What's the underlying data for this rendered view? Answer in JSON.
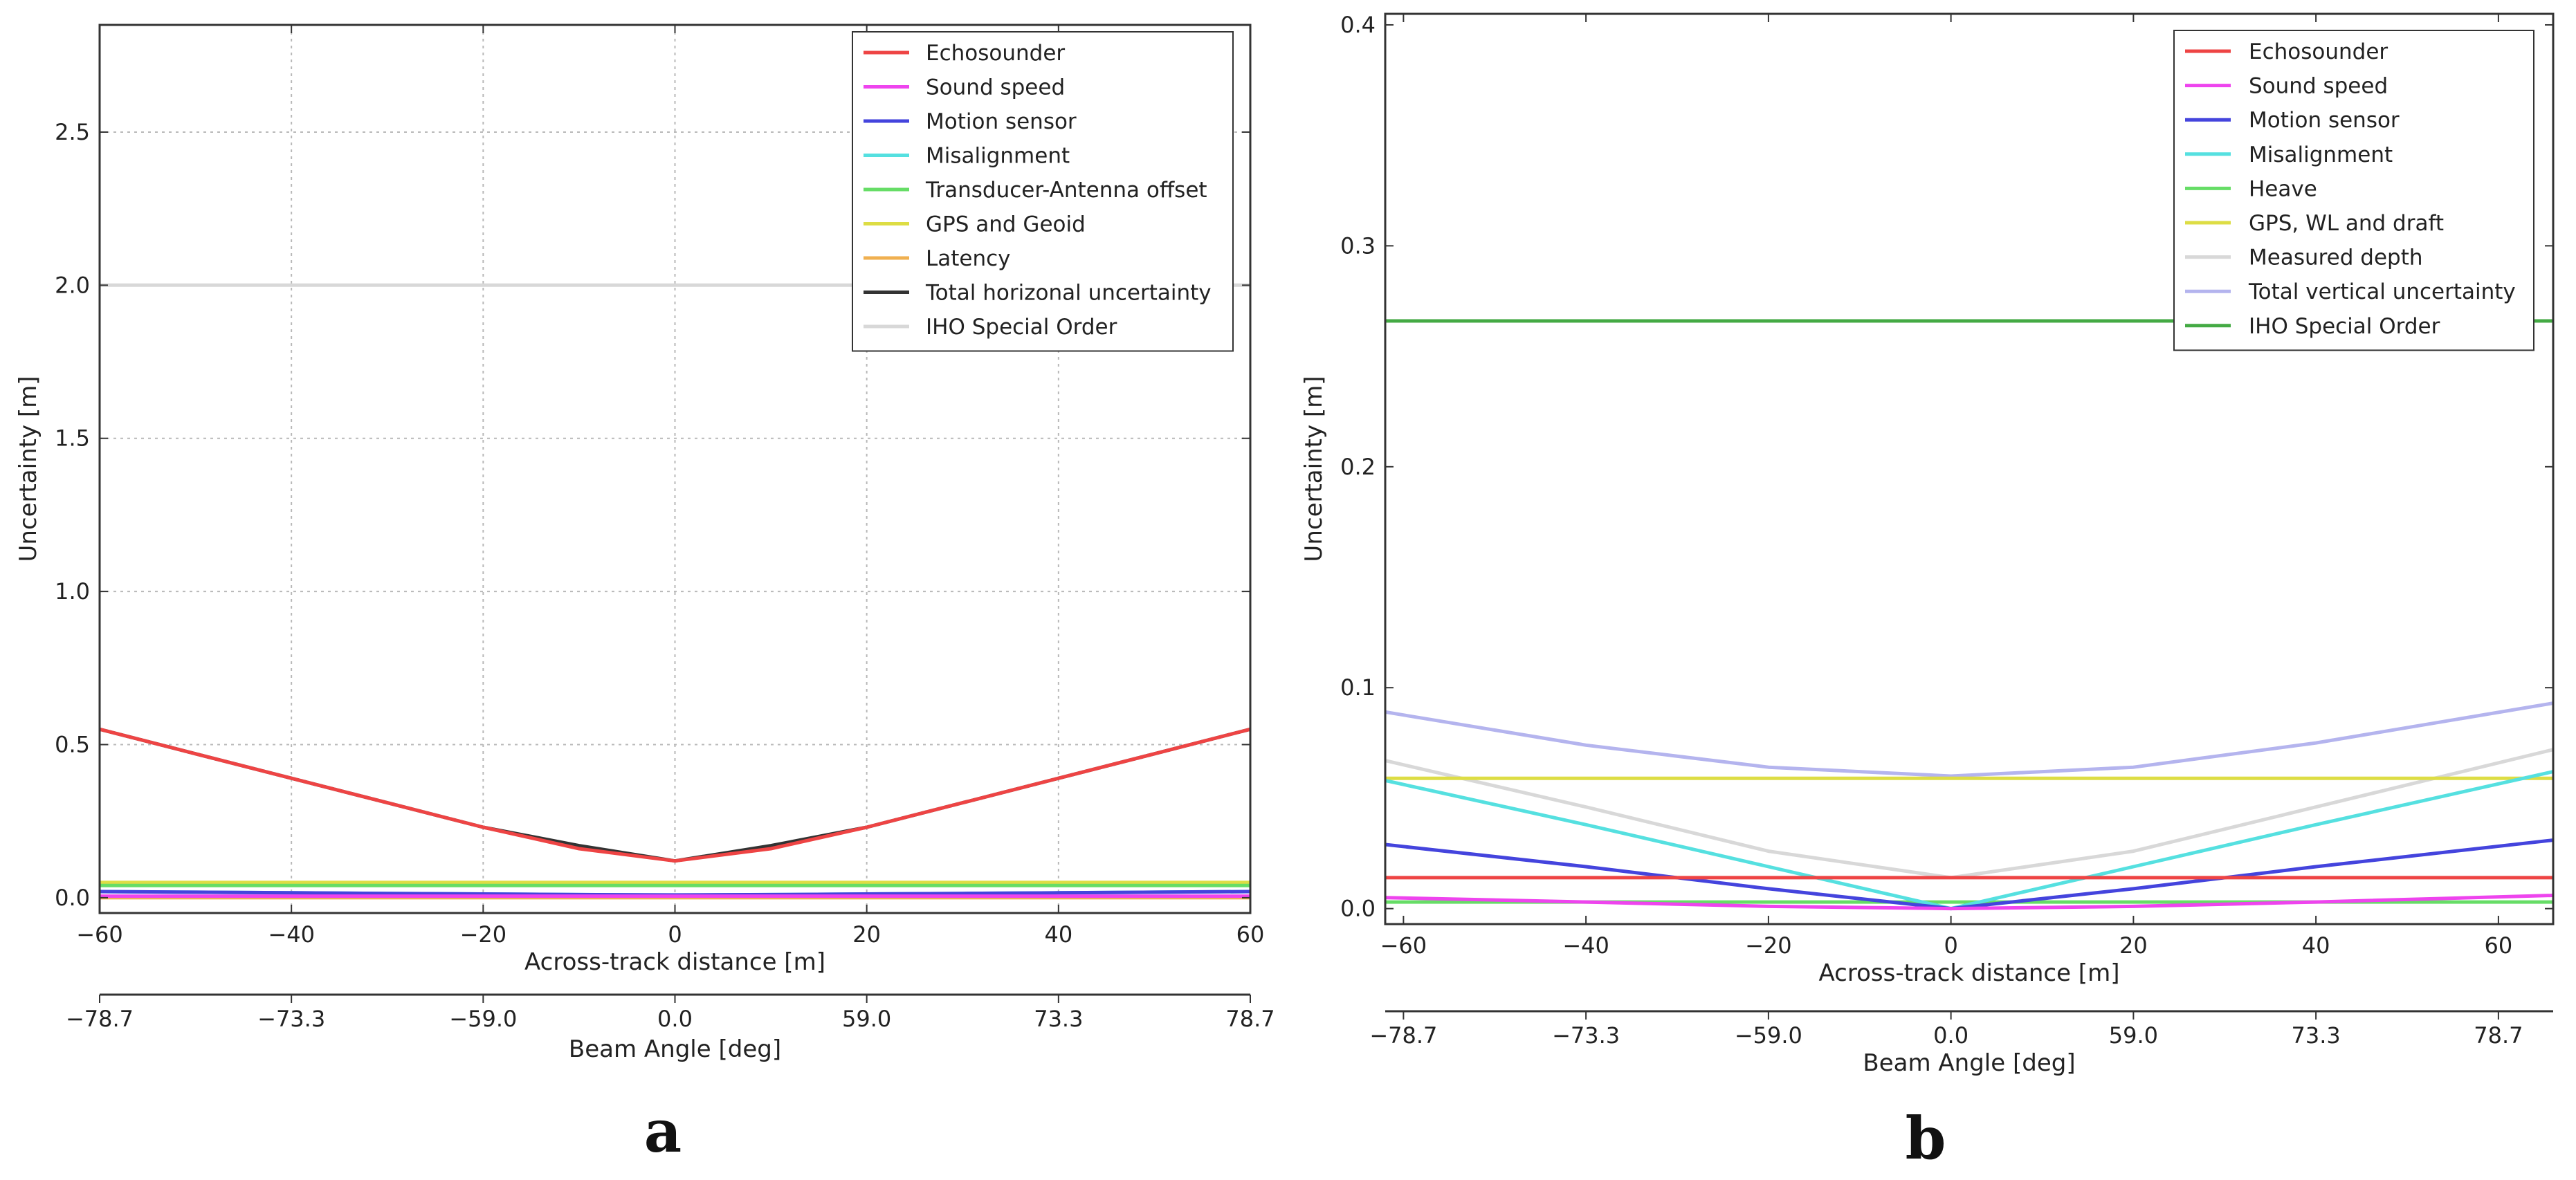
{
  "chart_data": [
    {
      "type": "line",
      "panel_label": "a",
      "xlabel": "Across-track distance [m]",
      "ylabel": "Uncertainty [m]",
      "xlim": [
        -60,
        60
      ],
      "ylim": [
        -0.05,
        2.85
      ],
      "grid": true,
      "xticks": [
        -60,
        -40,
        -20,
        0,
        20,
        40,
        60
      ],
      "xtick_labels": [
        "−60",
        "−40",
        "−20",
        "0",
        "20",
        "40",
        "60"
      ],
      "yticks": [
        0.0,
        0.5,
        1.0,
        1.5,
        2.0,
        2.5
      ],
      "ytick_labels": [
        "0.0",
        "0.5",
        "1.0",
        "1.5",
        "2.0",
        "2.5"
      ],
      "secondary_xlabel": "Beam Angle [deg]",
      "secondary_xticks": [
        -60,
        -40,
        -20,
        0,
        20,
        40,
        60
      ],
      "secondary_xtick_labels": [
        "−78.7",
        "−73.3",
        "−59.0",
        "0.0",
        "59.0",
        "73.3",
        "78.7"
      ],
      "legend_position": "top-right",
      "x": [
        -60,
        -50,
        -40,
        -30,
        -20,
        -10,
        0,
        10,
        20,
        30,
        40,
        50,
        60
      ],
      "series": [
        {
          "name": "Echosounder",
          "color": "#ee4444",
          "values": [
            0.55,
            0.47,
            0.39,
            0.31,
            0.23,
            0.16,
            0.12,
            0.16,
            0.23,
            0.31,
            0.39,
            0.47,
            0.55
          ]
        },
        {
          "name": "Sound speed",
          "color": "#ee44ee",
          "values": [
            0.005,
            0.005,
            0.005,
            0.005,
            0.005,
            0.005,
            0.005,
            0.005,
            0.005,
            0.005,
            0.005,
            0.005,
            0.005
          ]
        },
        {
          "name": "Motion sensor",
          "color": "#4444dd",
          "values": [
            0.02,
            0.018,
            0.016,
            0.014,
            0.012,
            0.01,
            0.009,
            0.01,
            0.012,
            0.014,
            0.016,
            0.018,
            0.02
          ]
        },
        {
          "name": "Misalignment",
          "color": "#55e0e0",
          "values": [
            0.02,
            0.018,
            0.016,
            0.014,
            0.012,
            0.01,
            0.008,
            0.01,
            0.012,
            0.014,
            0.016,
            0.018,
            0.02
          ]
        },
        {
          "name": "Transducer-Antenna offset",
          "color": "#66dd66",
          "values": [
            0.04,
            0.04,
            0.04,
            0.04,
            0.04,
            0.04,
            0.04,
            0.04,
            0.04,
            0.04,
            0.04,
            0.04,
            0.04
          ]
        },
        {
          "name": "GPS and Geoid",
          "color": "#dddd44",
          "values": [
            0.05,
            0.05,
            0.05,
            0.05,
            0.05,
            0.05,
            0.05,
            0.05,
            0.05,
            0.05,
            0.05,
            0.05,
            0.05
          ]
        },
        {
          "name": "Latency",
          "color": "#f0b050",
          "values": [
            0.0,
            0.0,
            0.0,
            0.0,
            0.0,
            0.0,
            0.0,
            0.0,
            0.0,
            0.0,
            0.0,
            0.0,
            0.0
          ]
        },
        {
          "name": "Total horizonal uncertainty",
          "color": "#333333",
          "values": [
            0.55,
            0.47,
            0.39,
            0.31,
            0.23,
            0.17,
            0.12,
            0.17,
            0.23,
            0.31,
            0.39,
            0.47,
            0.55
          ]
        },
        {
          "name": "IHO Special Order",
          "color": "#d8d8d8",
          "values": [
            2.0,
            2.0,
            2.0,
            2.0,
            2.0,
            2.0,
            2.0,
            2.0,
            2.0,
            2.0,
            2.0,
            2.0,
            2.0
          ]
        }
      ]
    },
    {
      "type": "line",
      "panel_label": "b",
      "xlabel": "Across-track distance [m]",
      "ylabel": "Uncertainty [m]",
      "xlim": [
        -62,
        66
      ],
      "ylim": [
        -0.007,
        0.405
      ],
      "grid": false,
      "xticks": [
        -60,
        -40,
        -20,
        0,
        20,
        40,
        60
      ],
      "xtick_labels": [
        "−60",
        "−40",
        "−20",
        "0",
        "20",
        "40",
        "60"
      ],
      "yticks": [
        0.0,
        0.1,
        0.2,
        0.3,
        0.4
      ],
      "ytick_labels": [
        "0.0",
        "0.1",
        "0.2",
        "0.3",
        "0.4"
      ],
      "secondary_xlabel": "Beam Angle [deg]",
      "secondary_xticks": [
        -60,
        -40,
        -20,
        0,
        20,
        40,
        60
      ],
      "secondary_xtick_labels": [
        "−78.7",
        "−73.3",
        "−59.0",
        "0.0",
        "59.0",
        "73.3",
        "78.7"
      ],
      "legend_position": "top-right",
      "x": [
        -62,
        -40,
        -20,
        0,
        20,
        40,
        66
      ],
      "series": [
        {
          "name": "Echosounder",
          "color": "#ee4444",
          "values": [
            0.014,
            0.014,
            0.014,
            0.014,
            0.014,
            0.014,
            0.014
          ]
        },
        {
          "name": "Sound speed",
          "color": "#ee44ee",
          "values": [
            0.005,
            0.003,
            0.001,
            0.0,
            0.001,
            0.003,
            0.006
          ]
        },
        {
          "name": "Motion sensor",
          "color": "#4444dd",
          "values": [
            0.029,
            0.019,
            0.009,
            0.0,
            0.009,
            0.019,
            0.031
          ]
        },
        {
          "name": "Misalignment",
          "color": "#55e0e0",
          "values": [
            0.058,
            0.038,
            0.019,
            0.0,
            0.019,
            0.038,
            0.062
          ]
        },
        {
          "name": "Heave",
          "color": "#66dd66",
          "values": [
            0.003,
            0.003,
            0.003,
            0.003,
            0.003,
            0.003,
            0.003
          ]
        },
        {
          "name": "GPS, WL and draft",
          "color": "#dddd44",
          "values": [
            0.059,
            0.059,
            0.059,
            0.059,
            0.059,
            0.059,
            0.059
          ]
        },
        {
          "name": "Measured depth",
          "color": "#d8d8d8",
          "values": [
            0.067,
            0.046,
            0.026,
            0.014,
            0.026,
            0.046,
            0.072
          ]
        },
        {
          "name": "Total vertical uncertainty",
          "color": "#b4b4ee",
          "values": [
            0.089,
            0.074,
            0.064,
            0.06,
            0.064,
            0.075,
            0.093
          ]
        },
        {
          "name": "IHO Special Order",
          "color": "#44aa44",
          "values": [
            0.266,
            0.266,
            0.266,
            0.266,
            0.266,
            0.266,
            0.266
          ]
        }
      ]
    }
  ]
}
